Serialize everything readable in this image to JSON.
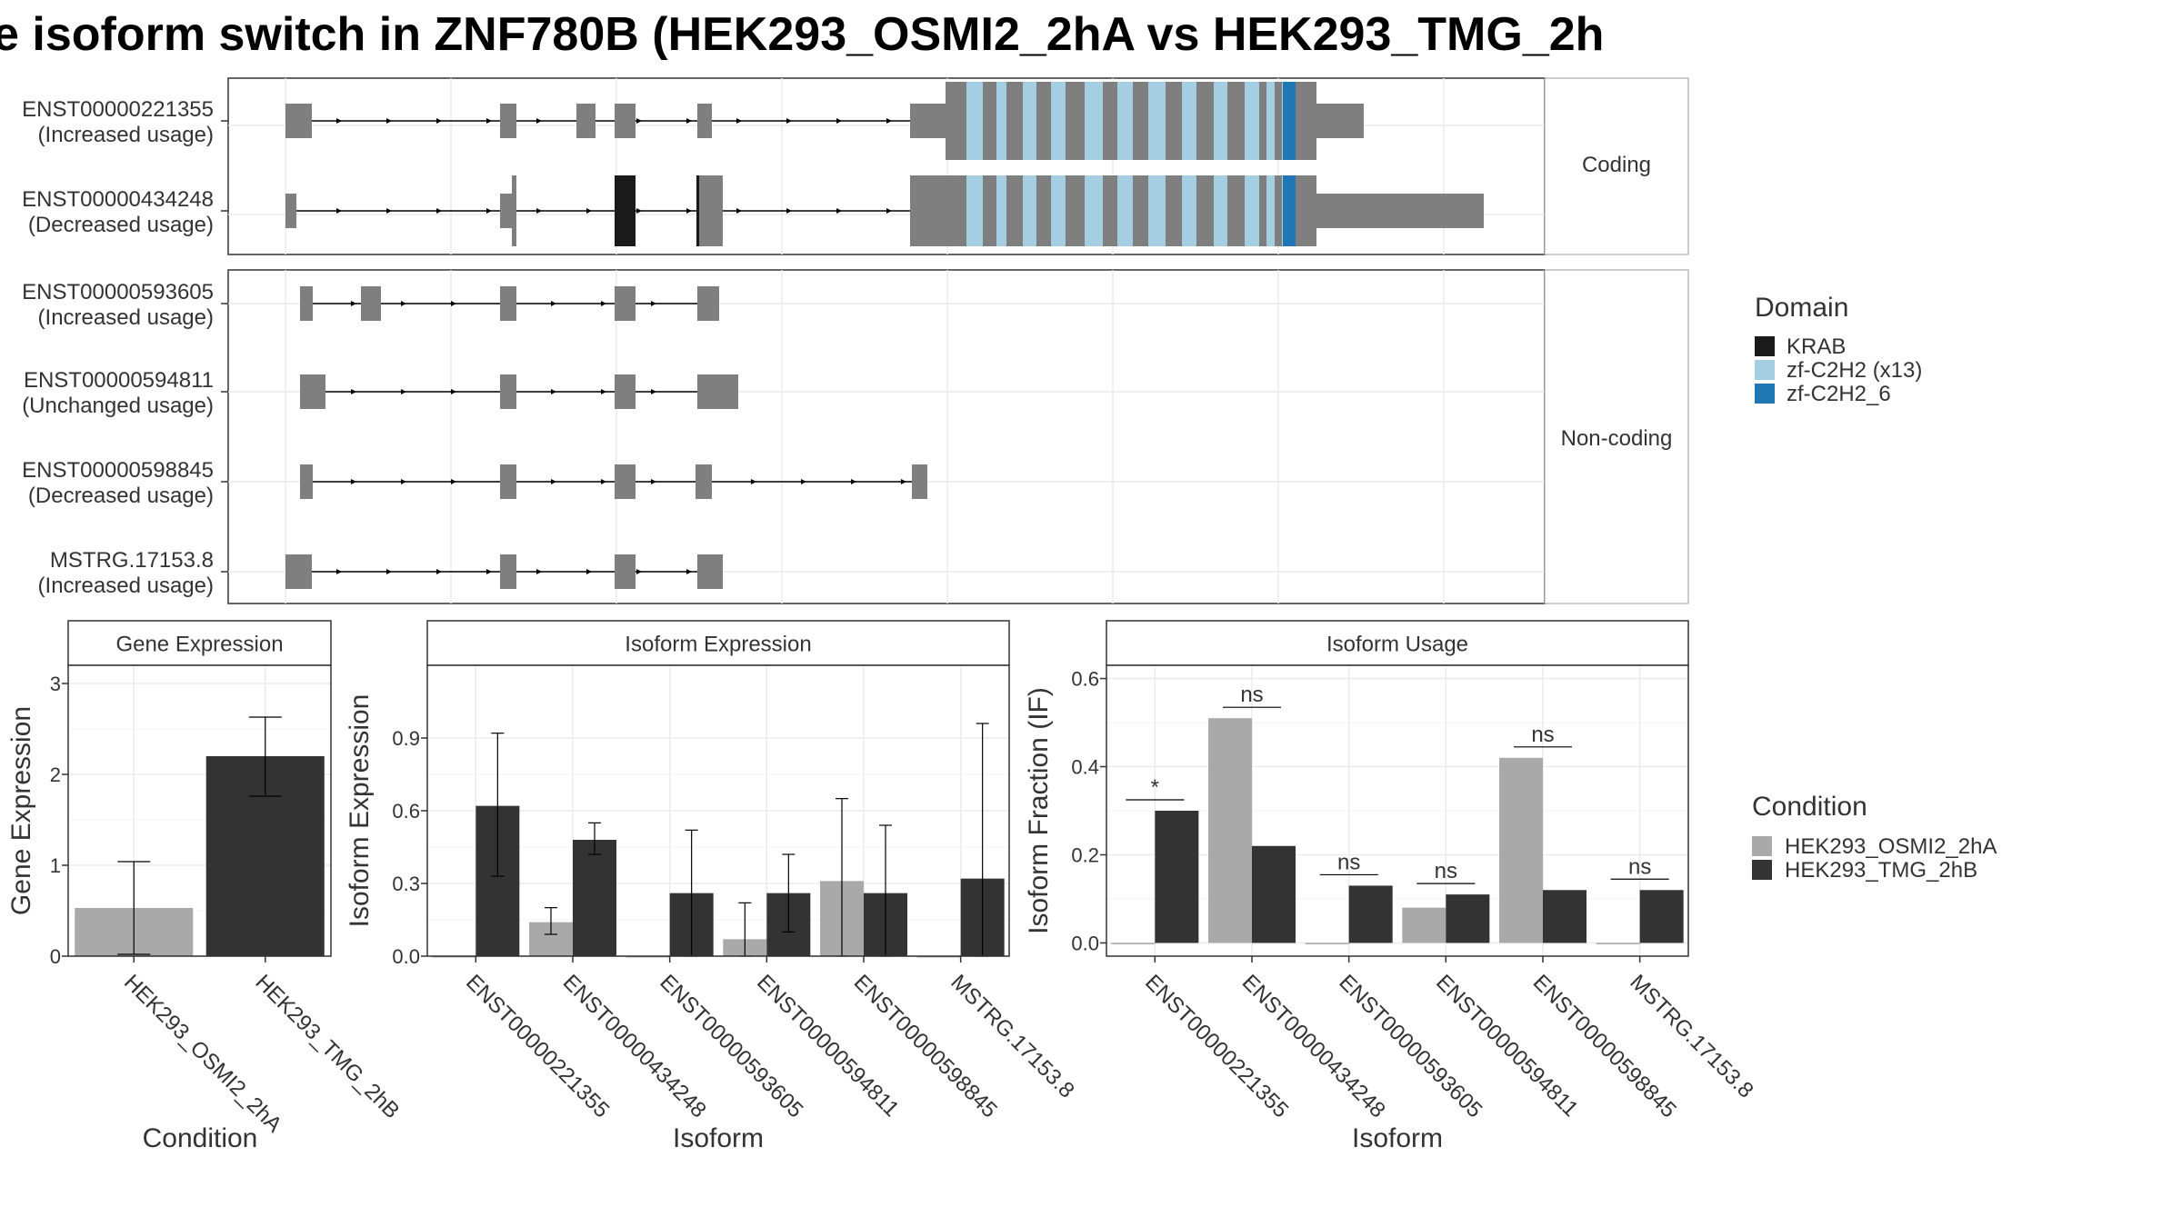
{
  "title": "e isoform switch in ZNF780B (HEK293_OSMI2_2hA vs HEK293_TMG_2h",
  "colors": {
    "exon": "#7f7f7f",
    "intron": "#000000",
    "KRAB": "#1a1a1a",
    "zf_C2H2_x13": "#a6cee3",
    "zf_C2H2_6": "#1f78b4",
    "cond_a": "#a9a9a9",
    "cond_b": "#333333",
    "grid": "#ebebeb",
    "strip_bg": "#ffffff"
  },
  "structure": {
    "coding_label": "Coding",
    "noncoding_label": "Non-coding",
    "transcripts": [
      {
        "id": "ENST00000221355",
        "status": "(Increased usage)",
        "group": "coding"
      },
      {
        "id": "ENST00000434248",
        "status": "(Decreased usage)",
        "group": "coding"
      },
      {
        "id": "ENST00000593605",
        "status": "(Increased usage)",
        "group": "noncoding"
      },
      {
        "id": "ENST00000594811",
        "status": "(Unchanged usage)",
        "group": "noncoding"
      },
      {
        "id": "ENST00000598845",
        "status": "(Decreased usage)",
        "group": "noncoding"
      },
      {
        "id": "MSTRG.17153.8",
        "status": "(Increased usage)",
        "group": "noncoding"
      }
    ]
  },
  "legend_domain": {
    "title": "Domain",
    "items": [
      {
        "label": "KRAB",
        "color": "#1a1a1a"
      },
      {
        "label": "zf-C2H2 (x13)",
        "color": "#a6cee3"
      },
      {
        "label": "zf-C2H2_6",
        "color": "#1f78b4"
      }
    ]
  },
  "legend_condition": {
    "title": "Condition",
    "items": [
      {
        "label": "HEK293_OSMI2_2hA",
        "color": "#a9a9a9"
      },
      {
        "label": "HEK293_TMG_2hB",
        "color": "#333333"
      }
    ]
  },
  "chart_data": [
    {
      "type": "bar",
      "title": "Gene Expression",
      "xlabel": "Condition",
      "ylabel": "Gene Expression",
      "ylim": [
        0,
        3.2
      ],
      "yticks": [
        0,
        1,
        2,
        3
      ],
      "categories": [
        "HEK293_OSMI2_2hA",
        "HEK293_TMG_2hB"
      ],
      "values": [
        0.53,
        2.2
      ],
      "errors": [
        [
          0.02,
          1.04
        ],
        [
          1.76,
          2.63
        ]
      ]
    },
    {
      "type": "bar",
      "title": "Isoform Expression",
      "xlabel": "Isoform",
      "ylabel": "Isoform Expression",
      "ylim": [
        0,
        1.2
      ],
      "yticks": [
        0.0,
        0.3,
        0.6,
        0.9
      ],
      "categories": [
        "ENST00000221355",
        "ENST00000434248",
        "ENST00000593605",
        "ENST00000594811",
        "ENST00000598845",
        "MSTRG.17153.8"
      ],
      "series": [
        {
          "name": "HEK293_OSMI2_2hA",
          "values": [
            0.0,
            0.14,
            0.0,
            0.07,
            0.31,
            0.0
          ],
          "errors": [
            null,
            [
              0.09,
              0.2
            ],
            null,
            [
              0.0,
              0.22
            ],
            [
              0.0,
              0.65
            ],
            null
          ]
        },
        {
          "name": "HEK293_TMG_2hB",
          "values": [
            0.62,
            0.48,
            0.26,
            0.26,
            0.26,
            0.32
          ],
          "errors": [
            [
              0.33,
              0.92
            ],
            [
              0.42,
              0.55
            ],
            [
              0.0,
              0.52
            ],
            [
              0.1,
              0.42
            ],
            [
              0.0,
              0.54
            ],
            [
              0.0,
              0.96
            ]
          ]
        }
      ]
    },
    {
      "type": "bar",
      "title": "Isoform Usage",
      "xlabel": "Isoform",
      "ylabel": "Isoform Fraction (IF)",
      "ylim": [
        -0.03,
        0.63
      ],
      "yticks": [
        0.0,
        0.2,
        0.4,
        0.6
      ],
      "categories": [
        "ENST00000221355",
        "ENST00000434248",
        "ENST00000593605",
        "ENST00000594811",
        "ENST00000598845",
        "MSTRG.17153.8"
      ],
      "series": [
        {
          "name": "HEK293_OSMI2_2hA",
          "values": [
            0.0,
            0.51,
            0.0,
            0.08,
            0.42,
            0.0
          ]
        },
        {
          "name": "HEK293_TMG_2hB",
          "values": [
            0.3,
            0.22,
            0.13,
            0.11,
            0.12,
            0.12
          ]
        }
      ],
      "significance": [
        "*",
        "ns",
        "ns",
        "ns",
        "ns",
        "ns"
      ]
    }
  ]
}
